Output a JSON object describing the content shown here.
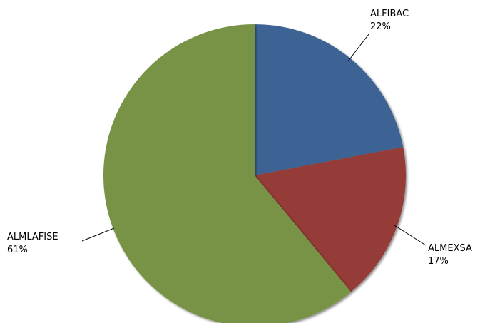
{
  "chart_data": {
    "type": "pie",
    "title": "",
    "slices": [
      {
        "label": "ALFIBAC",
        "value": 22,
        "percent_label": "22%",
        "color": "#3E6494"
      },
      {
        "label": "ALMEXSA",
        "value": 17,
        "percent_label": "17%",
        "color": "#953B39"
      },
      {
        "label": "ALMLAFISE",
        "value": 61,
        "percent_label": "61%",
        "color": "#789344"
      }
    ],
    "start_angle_deg": 0,
    "direction": "clockwise",
    "legend": "none",
    "data_labels": "outside with leader lines"
  }
}
